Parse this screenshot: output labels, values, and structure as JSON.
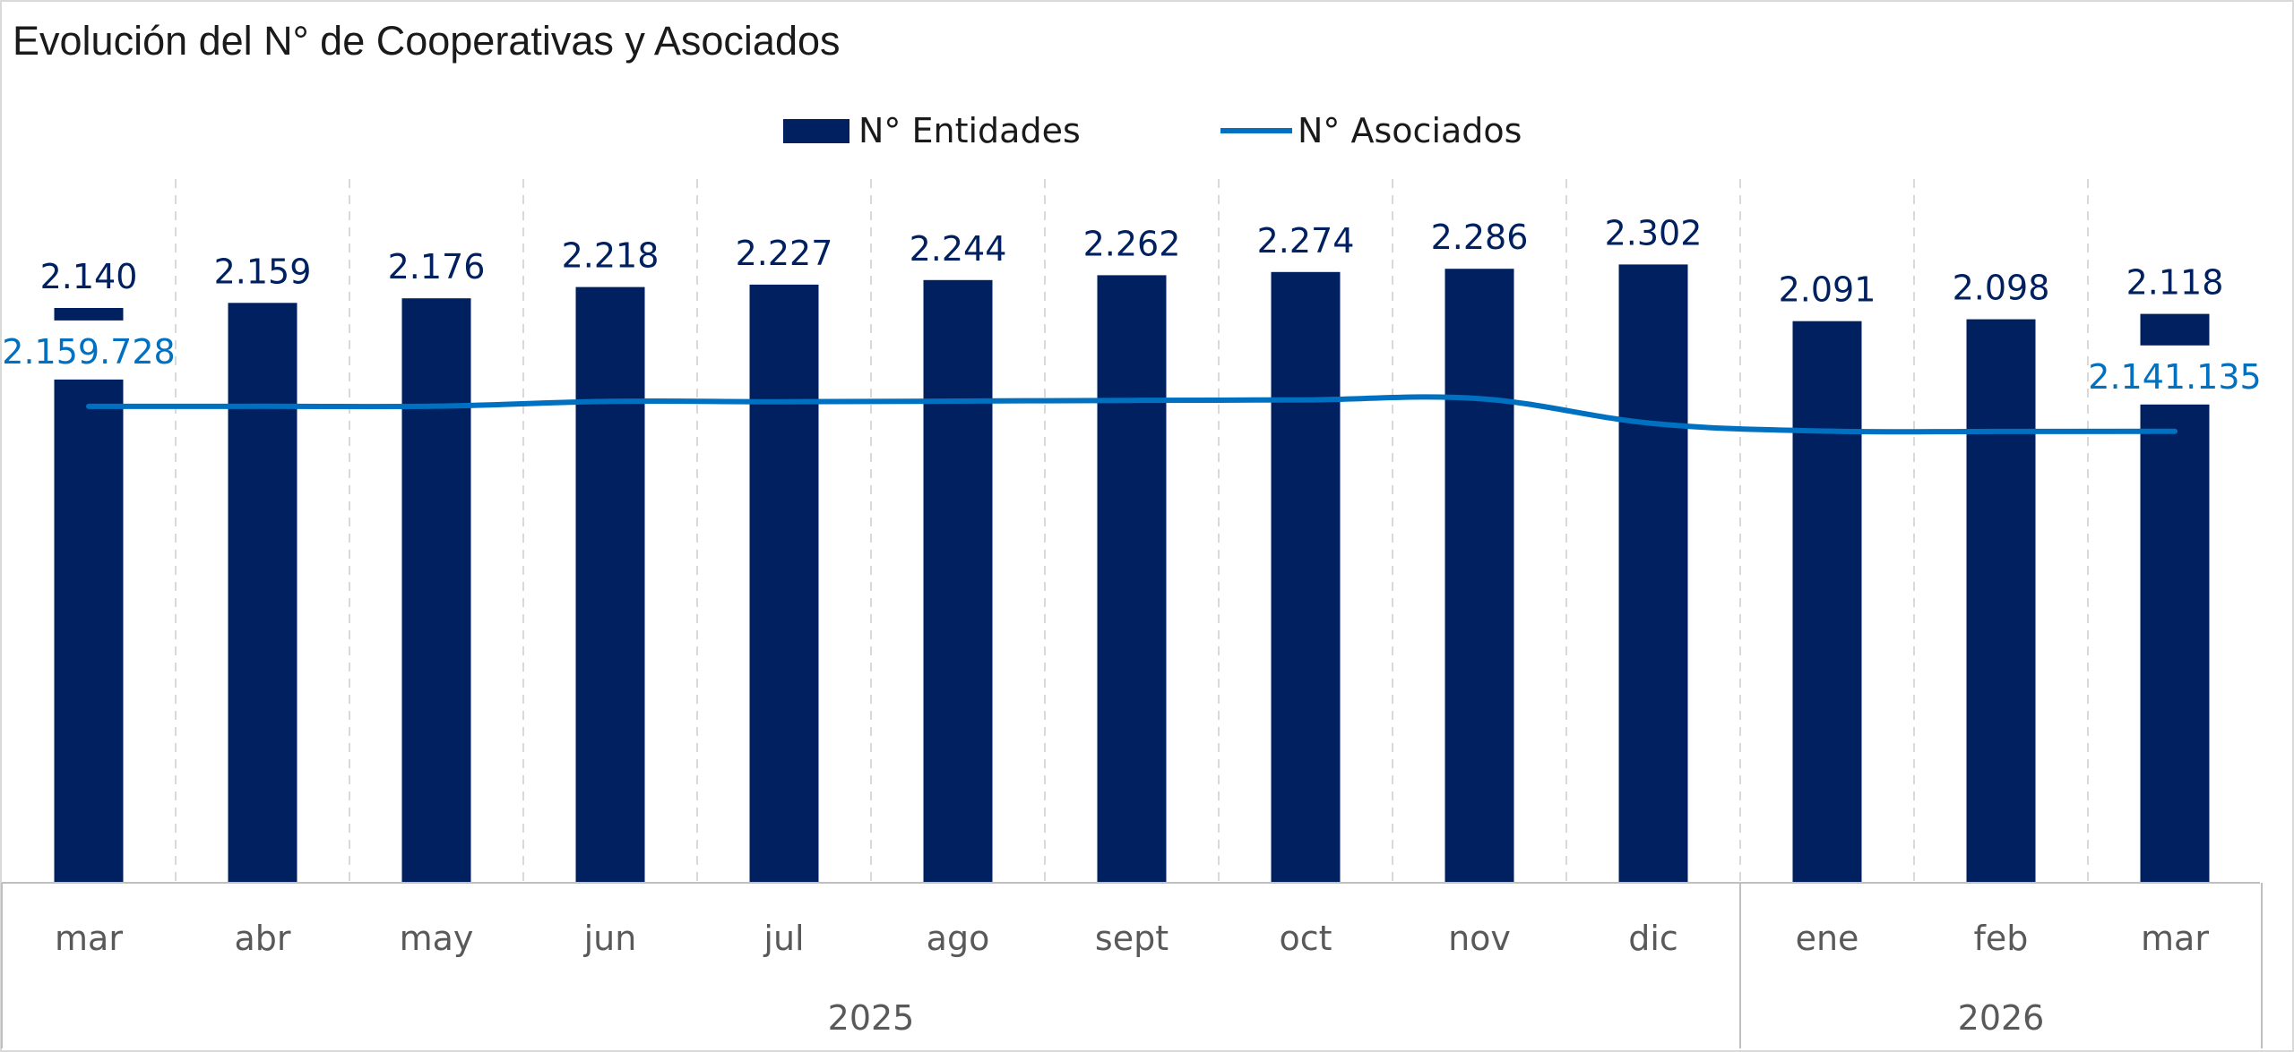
{
  "chart_data": {
    "type": "bar",
    "title": "Evolución del N° de Cooperativas y Asociados",
    "categories": [
      "mar",
      "abr",
      "may",
      "jun",
      "jul",
      "ago",
      "sept",
      "oct",
      "nov",
      "dic",
      "ene",
      "feb",
      "mar"
    ],
    "groups": [
      {
        "label": "2025",
        "count": 10
      },
      {
        "label": "2026",
        "count": 3
      }
    ],
    "series": [
      {
        "name": "N° Entidades",
        "type": "bar",
        "axis": "primary",
        "values": [
          2140,
          2159,
          2176,
          2218,
          2227,
          2244,
          2262,
          2274,
          2286,
          2302,
          2091,
          2098,
          2118
        ],
        "labels": [
          "2.140",
          "2.159",
          "2.176",
          "2.218",
          "2.227",
          "2.244",
          "2.262",
          "2.274",
          "2.286",
          "2.302",
          "2.091",
          "2.098",
          "2.118"
        ],
        "color": "#002060"
      },
      {
        "name": "N° Asociados",
        "type": "line",
        "axis": "secondary",
        "values": [
          2159728,
          2159800,
          2159900,
          2163500,
          2163200,
          2163700,
          2164200,
          2164600,
          2165500,
          2147000,
          2141300,
          2141100,
          2141135
        ],
        "labels": [
          "2.159.728",
          "",
          "",
          "",
          "",
          "",
          "",
          "",
          "",
          "",
          "",
          "",
          "2.141.135"
        ],
        "color": "#0070c0"
      }
    ],
    "ylim": [
      0,
      2500
    ],
    "y2lim": [
      1805000,
      2205000
    ],
    "legend": "top-center",
    "grid": "vertical-dashed",
    "xlabel": "",
    "ylabel": ""
  }
}
